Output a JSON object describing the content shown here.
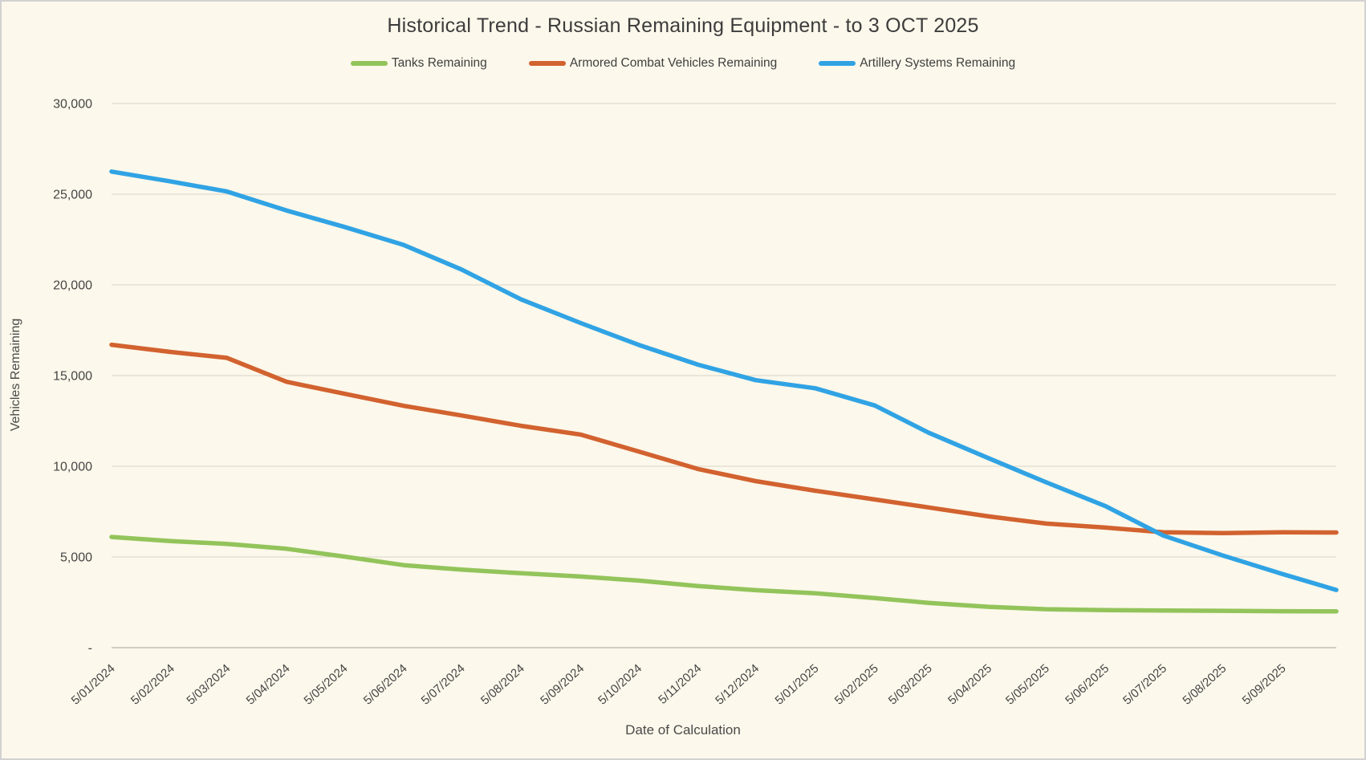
{
  "window": {
    "background_color": "#FCF8EB",
    "border_color": "#D2D2D2",
    "gridline_color": "#D9D5CA",
    "axisline_color": "#C3BFB4",
    "text_color": "#3F3F3F"
  },
  "chart_data": {
    "type": "line",
    "title": "Historical Trend - Russian Remaining Equipment - to 3 OCT 2025",
    "xlabel": "Date of Calculation",
    "ylabel": "Vehicles Remaining",
    "ylim": [
      0,
      30000
    ],
    "grid": "horizontal",
    "legend_position": "top-center",
    "marker": "none",
    "y_ticks": [
      0,
      5000,
      10000,
      15000,
      20000,
      25000,
      30000
    ],
    "y_tick_labels": [
      "-",
      "5,000",
      "10,000",
      "15,000",
      "20,000",
      "25,000",
      "30,000"
    ],
    "x_tick_labels": [
      "5/01/2024",
      "5/02/2024",
      "5/03/2024",
      "5/04/2024",
      "5/05/2024",
      "5/06/2024",
      "5/07/2024",
      "5/08/2024",
      "5/09/2024",
      "5/10/2024",
      "5/11/2024",
      "5/12/2024",
      "5/01/2025",
      "5/02/2025",
      "5/03/2025",
      "5/04/2025",
      "5/05/2025",
      "5/06/2025",
      "5/07/2025",
      "5/08/2025",
      "5/09/2025"
    ],
    "x_tick_label_rotation_deg": -42,
    "x_tick_days": [
      0,
      31,
      60,
      91,
      121,
      152,
      182,
      213,
      244,
      274,
      305,
      335,
      366,
      397,
      425,
      456,
      486,
      517,
      547,
      578,
      609
    ],
    "x_domain_days": [
      0,
      637
    ],
    "x_days": [
      0,
      31,
      60,
      91,
      121,
      152,
      182,
      213,
      244,
      274,
      305,
      335,
      366,
      397,
      425,
      456,
      486,
      517,
      547,
      578,
      609,
      637
    ],
    "series": [
      {
        "name": "Tanks Remaining",
        "color": "#93C45B",
        "values": [
          6100,
          5870,
          5720,
          5450,
          5020,
          4550,
          4300,
          4100,
          3920,
          3700,
          3400,
          3170,
          3000,
          2730,
          2470,
          2250,
          2120,
          2070,
          2050,
          2030,
          2010,
          2000
        ]
      },
      {
        "name": "Armored Combat Vehicles Remaining",
        "color": "#D2622F",
        "values": [
          16700,
          16300,
          15980,
          14660,
          14000,
          13330,
          12800,
          12230,
          11750,
          10820,
          9850,
          9180,
          8650,
          8170,
          7730,
          7240,
          6840,
          6620,
          6360,
          6320,
          6360,
          6350
        ]
      },
      {
        "name": "Artillery Systems Remaining",
        "color": "#30A3E4",
        "values": [
          26250,
          25700,
          25150,
          24100,
          23200,
          22200,
          20850,
          19200,
          17900,
          16700,
          15600,
          14750,
          14300,
          13350,
          11850,
          10450,
          9120,
          7800,
          6180,
          5080,
          4060,
          3180
        ]
      }
    ]
  }
}
